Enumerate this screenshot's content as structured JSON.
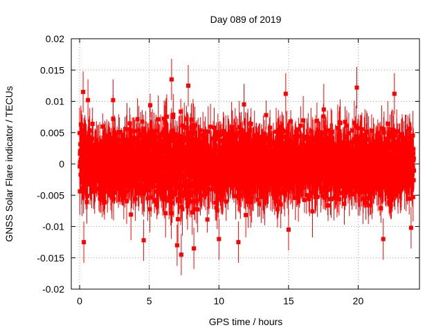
{
  "chart_data": {
    "type": "scatter",
    "title": "Day 089 of 2019",
    "xlabel": "GPS time / hours",
    "ylabel": "GNSS Solar Flare indicator / TECUs",
    "xlim": [
      -0.6,
      24.4
    ],
    "ylim": [
      -0.02,
      0.02
    ],
    "xticks": [
      0,
      5,
      10,
      15,
      20
    ],
    "xtick_labels": [
      "0",
      "5",
      "10",
      "15",
      "20"
    ],
    "yticks": [
      -0.02,
      -0.015,
      -0.01,
      -0.005,
      0,
      0.005,
      0.01,
      0.015,
      0.02
    ],
    "ytick_labels": [
      "-0.02",
      "-0.015",
      "-0.01",
      "-0.005",
      "0",
      "0.005",
      "0.01",
      "0.015",
      "0.02"
    ],
    "grid": true,
    "series": [
      {
        "name": "solar flare indicator",
        "color": "#ff0000",
        "marker": "square",
        "error_bars": true,
        "x_start": 0,
        "x_end": 24,
        "sample_interval_hours": 0.00833,
        "points": 2880,
        "typical_range": [
          -0.006,
          0.006
        ],
        "typical_error": 0.003,
        "extremes": [
          {
            "x": 0.25,
            "y": 0.0115
          },
          {
            "x": 0.3,
            "y": -0.0125
          },
          {
            "x": 0.6,
            "y": 0.0102
          },
          {
            "x": 2.4,
            "y": 0.0102
          },
          {
            "x": 4.6,
            "y": -0.0122
          },
          {
            "x": 6.6,
            "y": 0.0135
          },
          {
            "x": 7.3,
            "y": -0.0145
          },
          {
            "x": 7.0,
            "y": -0.013
          },
          {
            "x": 7.8,
            "y": 0.0125
          },
          {
            "x": 8.2,
            "y": -0.0135
          },
          {
            "x": 10.0,
            "y": -0.012
          },
          {
            "x": 11.4,
            "y": -0.0125
          },
          {
            "x": 11.8,
            "y": 0.0095
          },
          {
            "x": 14.8,
            "y": 0.0112
          },
          {
            "x": 15.0,
            "y": -0.0105
          },
          {
            "x": 19.9,
            "y": 0.0122
          },
          {
            "x": 21.8,
            "y": -0.012
          },
          {
            "x": 22.6,
            "y": 0.0112
          },
          {
            "x": 23.8,
            "y": -0.0102
          }
        ]
      }
    ]
  }
}
